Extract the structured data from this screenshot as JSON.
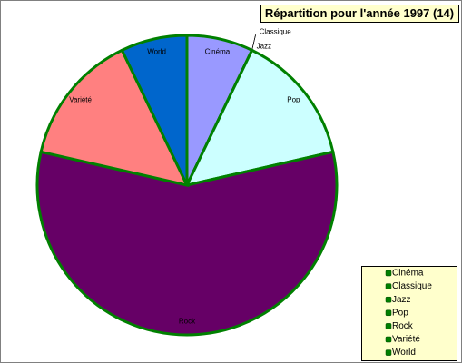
{
  "chart_data": {
    "type": "pie",
    "title": "Répartition pour l'année 1997 (14)",
    "categories": [
      "Cinéma",
      "Classique",
      "Jazz",
      "Pop",
      "Rock",
      "Variété",
      "World"
    ],
    "values": [
      1,
      0,
      0,
      2,
      8,
      2,
      1
    ],
    "colors": [
      "#9999ff",
      "#993366",
      "#ffffcc",
      "#ccffff",
      "#660066",
      "#ff8080",
      "#0066cc"
    ],
    "edge_color": "#008000",
    "legend": "bottom-right"
  }
}
